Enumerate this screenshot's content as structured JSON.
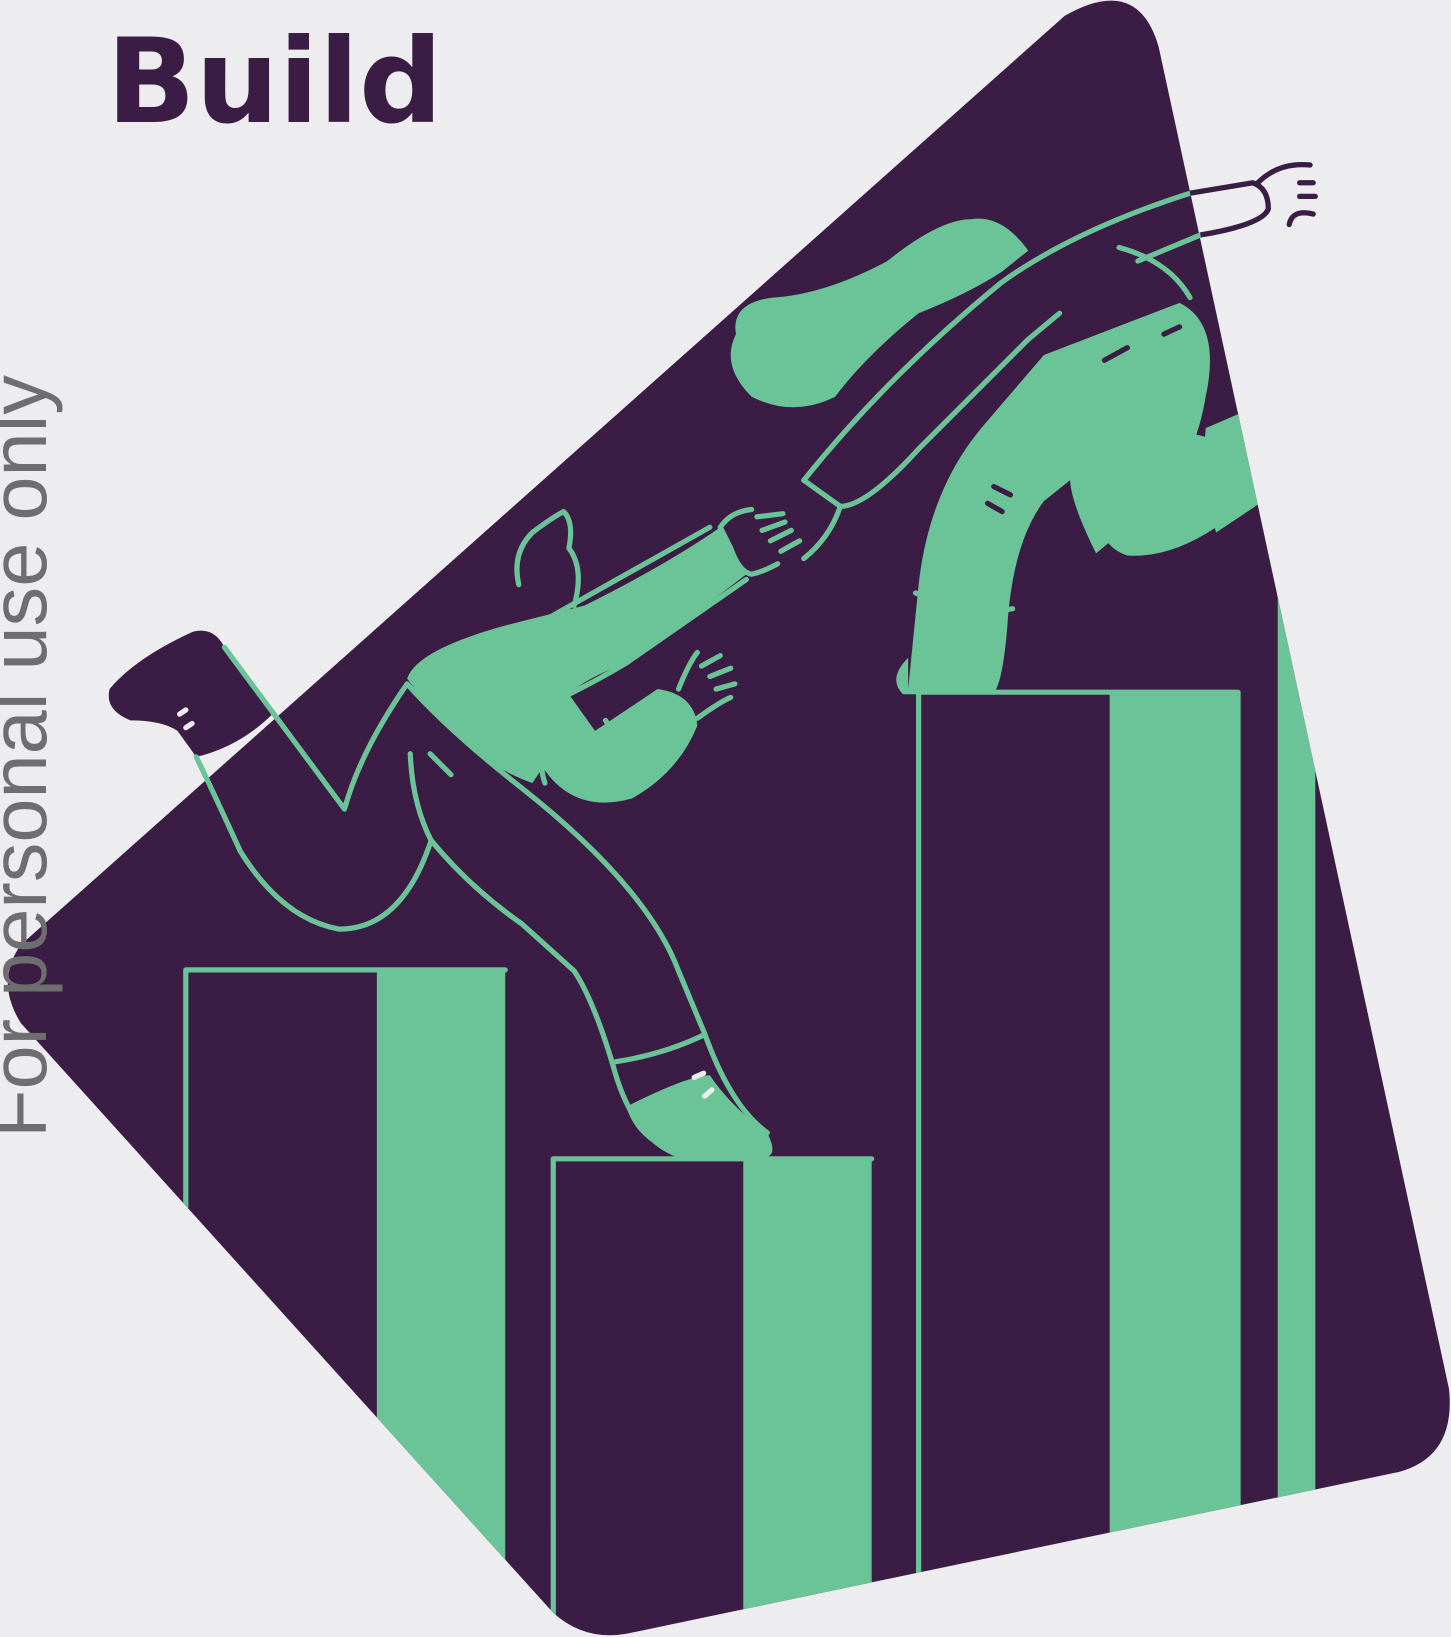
{
  "title": "Build",
  "watermark": "For personal use only"
}
